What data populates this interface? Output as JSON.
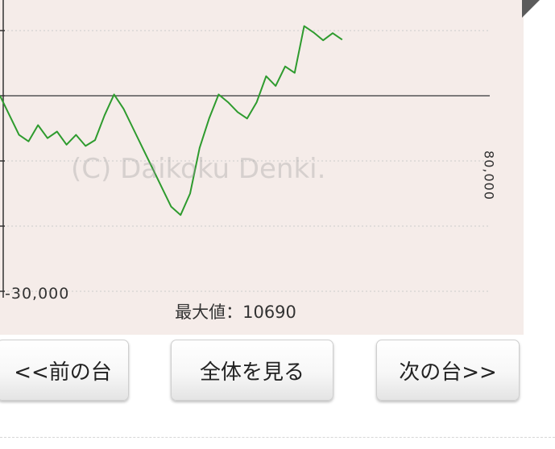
{
  "chart": {
    "y_min_label": "-30,000",
    "max_label": "最大値：10690",
    "right_axis_label": "80,000",
    "watermark": "(C) Daikoku Denki.",
    "line_color": "#2e9b2e",
    "background_color": "#f5ece9"
  },
  "chart_data": {
    "type": "line",
    "ylim": [
      -30000,
      10000
    ],
    "baseline": 0,
    "grid": true,
    "series": [
      {
        "color": "#2e9b2e",
        "points": [
          [
            0,
            0
          ],
          [
            1,
            -3000
          ],
          [
            2,
            -6000
          ],
          [
            3,
            -7000
          ],
          [
            4,
            -4500
          ],
          [
            5,
            -6500
          ],
          [
            6,
            -5500
          ],
          [
            7,
            -7500
          ],
          [
            8,
            -6000
          ],
          [
            9,
            -7700
          ],
          [
            10,
            -6800
          ],
          [
            11,
            -3000
          ],
          [
            12,
            200
          ],
          [
            13,
            -2000
          ],
          [
            14,
            -5000
          ],
          [
            15,
            -8000
          ],
          [
            16,
            -11000
          ],
          [
            17,
            -14000
          ],
          [
            18,
            -17000
          ],
          [
            19,
            -18300
          ],
          [
            20,
            -15000
          ],
          [
            21,
            -8000
          ],
          [
            22,
            -3500
          ],
          [
            23,
            200
          ],
          [
            24,
            -1000
          ],
          [
            25,
            -2500
          ],
          [
            26,
            -3500
          ],
          [
            27,
            -1000
          ],
          [
            28,
            3000
          ],
          [
            29,
            1500
          ],
          [
            30,
            4500
          ],
          [
            31,
            3500
          ],
          [
            32,
            10690
          ],
          [
            33,
            9700
          ],
          [
            34,
            8500
          ],
          [
            35,
            9600
          ],
          [
            36,
            8600
          ]
        ]
      }
    ]
  },
  "buttons": {
    "prev_label": "<<前の台",
    "all_label": "全体を見る",
    "next_label": "次の台>>"
  }
}
